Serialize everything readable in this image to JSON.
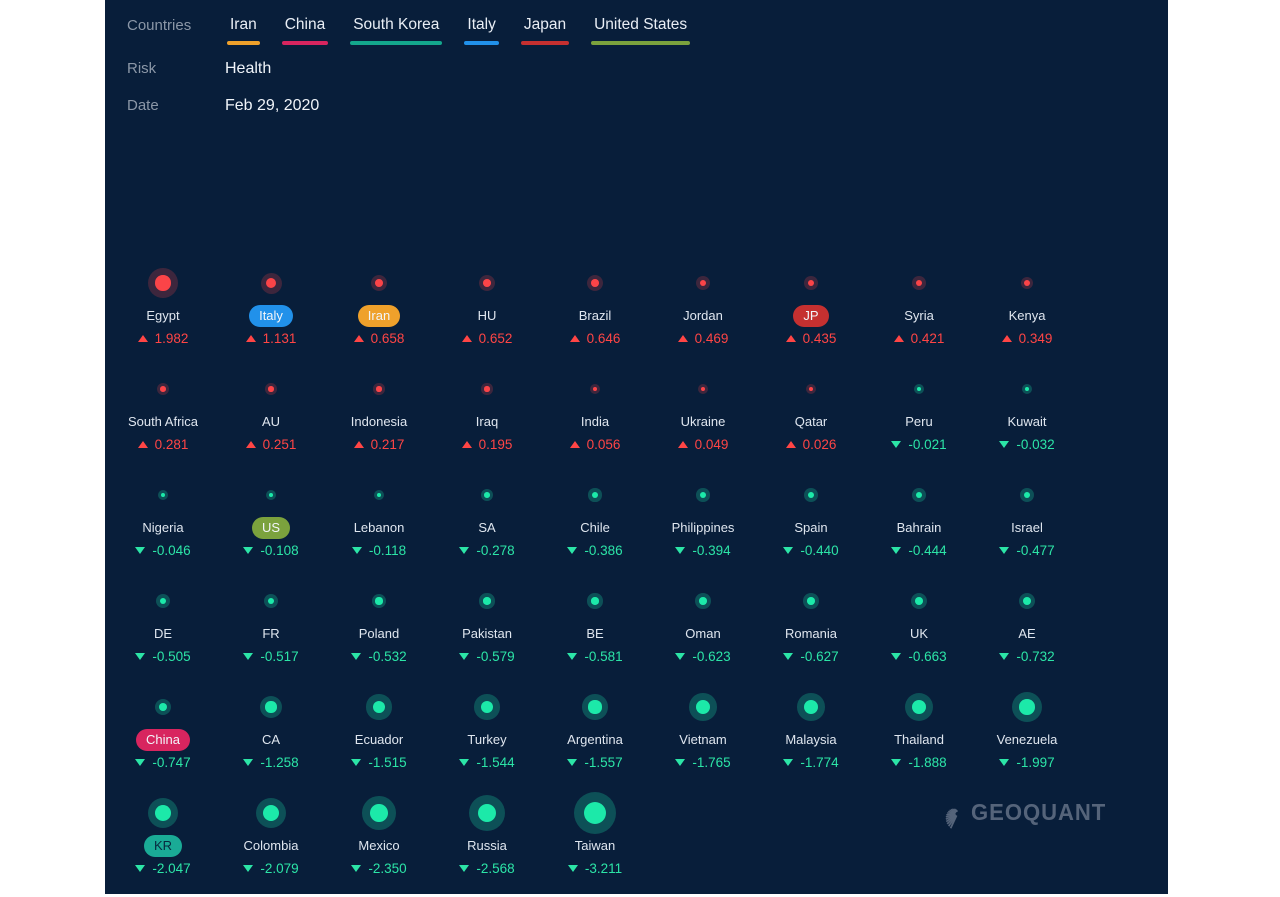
{
  "header": {
    "countries_label": "Countries",
    "country_filters": [
      {
        "label": "Iran",
        "color": "#efa12b"
      },
      {
        "label": "China",
        "color": "#d8255f"
      },
      {
        "label": "South Korea",
        "color": "#14a78c"
      },
      {
        "label": "Italy",
        "color": "#2191ea"
      },
      {
        "label": "Japan",
        "color": "#c53030"
      },
      {
        "label": "United States",
        "color": "#7ba23d"
      }
    ],
    "risk_label": "Risk",
    "risk_value": "Health",
    "date_label": "Date",
    "date_value": "Feb 29, 2020"
  },
  "colors": {
    "positive": "#ff4545",
    "negative": "#2ce5a7",
    "positive_dot": "#fb4448",
    "negative_dot": "#1ce9a9",
    "positive_halo": "rgba(250,67,71,0.22)",
    "negative_halo": "rgba(26,187,150,0.32)"
  },
  "grid": {
    "items": [
      {
        "name": "Egypt",
        "value": "1.982"
      },
      {
        "name": "Italy",
        "value": "1.131",
        "pill": "#2191ea"
      },
      {
        "name": "Iran",
        "value": "0.658",
        "pill": "#efa12b"
      },
      {
        "name": "HU",
        "value": "0.652"
      },
      {
        "name": "Brazil",
        "value": "0.646"
      },
      {
        "name": "Jordan",
        "value": "0.469"
      },
      {
        "name": "JP",
        "value": "0.435",
        "pill": "#c53030"
      },
      {
        "name": "Syria",
        "value": "0.421"
      },
      {
        "name": "Kenya",
        "value": "0.349"
      },
      {
        "name": "South Africa",
        "value": "0.281"
      },
      {
        "name": "AU",
        "value": "0.251"
      },
      {
        "name": "Indonesia",
        "value": "0.217"
      },
      {
        "name": "Iraq",
        "value": "0.195"
      },
      {
        "name": "India",
        "value": "0.056"
      },
      {
        "name": "Ukraine",
        "value": "0.049"
      },
      {
        "name": "Qatar",
        "value": "0.026"
      },
      {
        "name": "Peru",
        "value": "-0.021"
      },
      {
        "name": "Kuwait",
        "value": "-0.032"
      },
      {
        "name": "Nigeria",
        "value": "-0.046"
      },
      {
        "name": "US",
        "value": "-0.108",
        "pill": "#7ba23d"
      },
      {
        "name": "Lebanon",
        "value": "-0.118"
      },
      {
        "name": "SA",
        "value": "-0.278"
      },
      {
        "name": "Chile",
        "value": "-0.386"
      },
      {
        "name": "Philippines",
        "value": "-0.394"
      },
      {
        "name": "Spain",
        "value": "-0.440"
      },
      {
        "name": "Bahrain",
        "value": "-0.444"
      },
      {
        "name": "Israel",
        "value": "-0.477"
      },
      {
        "name": "DE",
        "value": "-0.505"
      },
      {
        "name": "FR",
        "value": "-0.517"
      },
      {
        "name": "Poland",
        "value": "-0.532"
      },
      {
        "name": "Pakistan",
        "value": "-0.579"
      },
      {
        "name": "BE",
        "value": "-0.581"
      },
      {
        "name": "Oman",
        "value": "-0.623"
      },
      {
        "name": "Romania",
        "value": "-0.627"
      },
      {
        "name": "UK",
        "value": "-0.663"
      },
      {
        "name": "AE",
        "value": "-0.732"
      },
      {
        "name": "China",
        "value": "-0.747",
        "pill": "#d8255f"
      },
      {
        "name": "CA",
        "value": "-1.258"
      },
      {
        "name": "Ecuador",
        "value": "-1.515"
      },
      {
        "name": "Turkey",
        "value": "-1.544"
      },
      {
        "name": "Argentina",
        "value": "-1.557"
      },
      {
        "name": "Vietnam",
        "value": "-1.765"
      },
      {
        "name": "Malaysia",
        "value": "-1.774"
      },
      {
        "name": "Thailand",
        "value": "-1.888"
      },
      {
        "name": "Venezuela",
        "value": "-1.997"
      },
      {
        "name": "KR",
        "value": "-2.047",
        "pill": "#1aab96",
        "pill_text": "#07293f"
      },
      {
        "name": "Colombia",
        "value": "-2.079"
      },
      {
        "name": "Mexico",
        "value": "-2.350"
      },
      {
        "name": "Russia",
        "value": "-2.568"
      },
      {
        "name": "Taiwan",
        "value": "-3.211"
      }
    ]
  },
  "logo": {
    "text": "GEOQUANT"
  }
}
